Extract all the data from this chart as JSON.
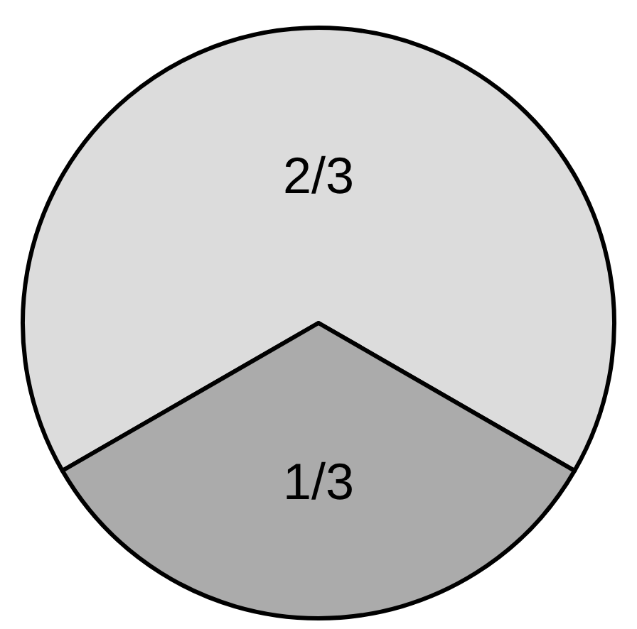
{
  "chart_data": {
    "type": "pie",
    "categories": [
      null,
      null
    ],
    "values": [
      0.6667,
      0.3333
    ],
    "value_labels": [
      "2/3",
      "1/3"
    ],
    "colors": [
      "#dcdcdc",
      "#ababab"
    ],
    "legend": false
  }
}
